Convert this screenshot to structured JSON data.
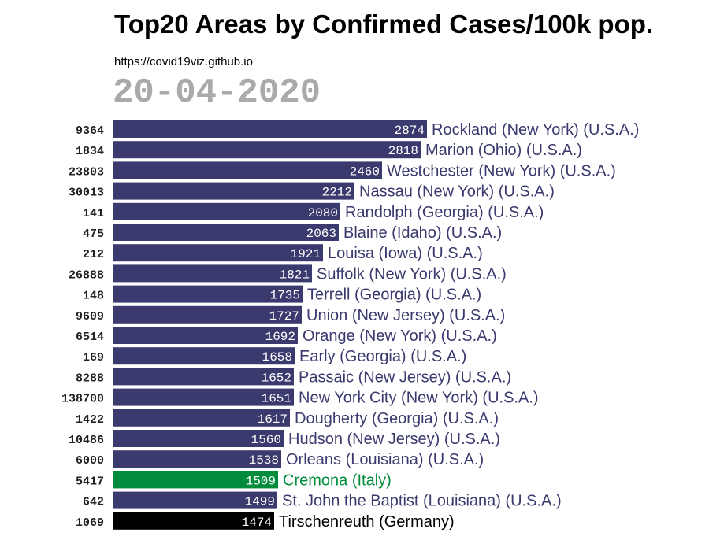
{
  "title": "Top20 Areas by Confirmed Cases/100k pop.",
  "source": "https://covid19viz.github.io",
  "date": "20-04-2020",
  "colors": {
    "us_bar": "#3a3a6e",
    "italy_bar": "#008c3c",
    "germany_bar": "#000000",
    "value_text": "#ffffff",
    "population_text": "#222222",
    "date_text": "#aaaaaa"
  },
  "chart_data": {
    "type": "bar",
    "orientation": "horizontal",
    "title": "Top20 Areas by Confirmed Cases/100k pop.",
    "xlim": [
      0,
      2874
    ],
    "rows": [
      {
        "area": "Rockland (New York) (U.S.A.)",
        "value": 2874,
        "population": "9364",
        "country": "USA"
      },
      {
        "area": "Marion (Ohio) (U.S.A.)",
        "value": 2818,
        "population": "1834",
        "country": "USA"
      },
      {
        "area": "Westchester (New York) (U.S.A.)",
        "value": 2460,
        "population": "23803",
        "country": "USA"
      },
      {
        "area": "Nassau (New York) (U.S.A.)",
        "value": 2212,
        "population": "30013",
        "country": "USA"
      },
      {
        "area": "Randolph (Georgia) (U.S.A.)",
        "value": 2080,
        "population": "141",
        "country": "USA"
      },
      {
        "area": "Blaine (Idaho) (U.S.A.)",
        "value": 2063,
        "population": "475",
        "country": "USA"
      },
      {
        "area": "Louisa (Iowa) (U.S.A.)",
        "value": 1921,
        "population": "212",
        "country": "USA"
      },
      {
        "area": "Suffolk (New York) (U.S.A.)",
        "value": 1821,
        "population": "26888",
        "country": "USA"
      },
      {
        "area": "Terrell (Georgia) (U.S.A.)",
        "value": 1735,
        "population": "148",
        "country": "USA"
      },
      {
        "area": "Union (New Jersey) (U.S.A.)",
        "value": 1727,
        "population": "9609",
        "country": "USA"
      },
      {
        "area": "Orange (New York) (U.S.A.)",
        "value": 1692,
        "population": "6514",
        "country": "USA"
      },
      {
        "area": "Early (Georgia) (U.S.A.)",
        "value": 1658,
        "population": "169",
        "country": "USA"
      },
      {
        "area": "Passaic (New Jersey) (U.S.A.)",
        "value": 1652,
        "population": "8288",
        "country": "USA"
      },
      {
        "area": "New York City (New York) (U.S.A.)",
        "value": 1651,
        "population": "138700",
        "country": "USA"
      },
      {
        "area": "Dougherty (Georgia) (U.S.A.)",
        "value": 1617,
        "population": "1422",
        "country": "USA"
      },
      {
        "area": "Hudson (New Jersey) (U.S.A.)",
        "value": 1560,
        "population": "10486",
        "country": "USA"
      },
      {
        "area": "Orleans (Louisiana) (U.S.A.)",
        "value": 1538,
        "population": "6000",
        "country": "USA"
      },
      {
        "area": "Cremona (Italy)",
        "value": 1509,
        "population": "5417",
        "country": "Italy"
      },
      {
        "area": "St. John the Baptist (Louisiana) (U.S.A.)",
        "value": 1499,
        "population": "642",
        "country": "USA"
      },
      {
        "area": "Tirschenreuth (Germany)",
        "value": 1474,
        "population": "1069",
        "country": "Germany"
      }
    ]
  }
}
